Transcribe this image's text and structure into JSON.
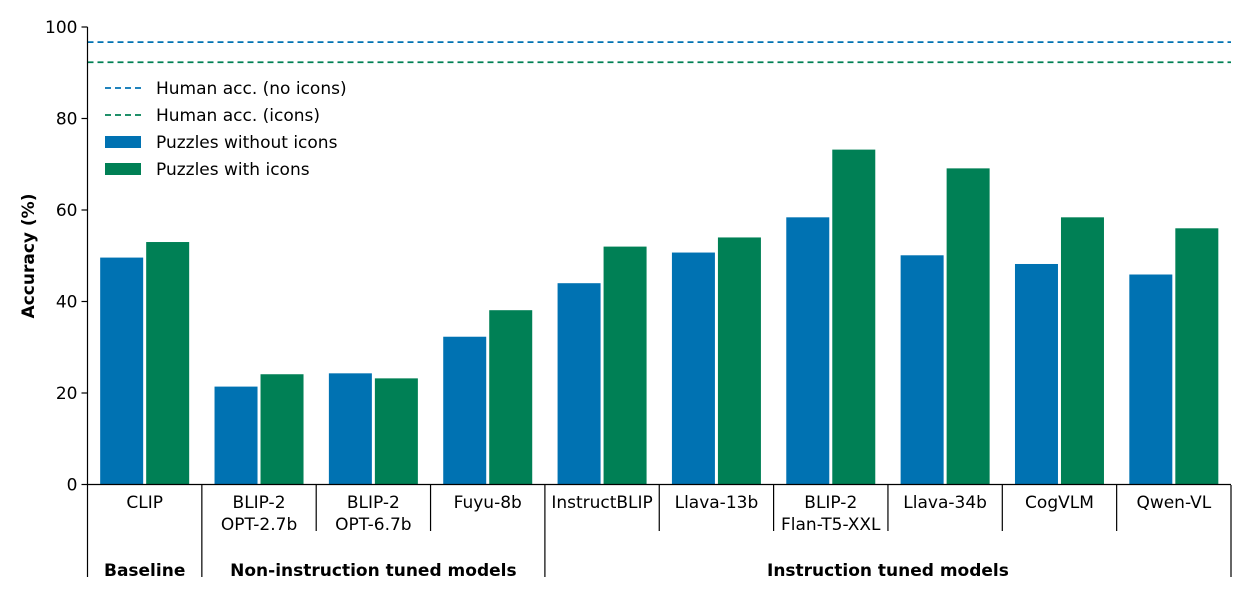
{
  "chart_data": {
    "type": "bar",
    "ylabel": "Accuracy (%)",
    "ylim": [
      0,
      100
    ],
    "yticks": [
      0,
      20,
      40,
      60,
      80,
      100
    ],
    "grid": false,
    "legend_position": "upper-left",
    "categories": [
      [
        "CLIP"
      ],
      [
        "BLIP-2",
        "OPT-2.7b"
      ],
      [
        "BLIP-2",
        "OPT-6.7b"
      ],
      [
        "Fuyu-8b"
      ],
      [
        "InstructBLIP"
      ],
      [
        "Llava-13b"
      ],
      [
        "BLIP-2",
        "Flan-T5-XXL"
      ],
      [
        "Llava-34b"
      ],
      [
        "CogVLM"
      ],
      [
        "Qwen-VL"
      ]
    ],
    "series": [
      {
        "name": "Puzzles without icons",
        "color": "#0072b2",
        "values": [
          49.6,
          21.4,
          24.3,
          32.3,
          44.0,
          50.7,
          58.4,
          50.1,
          48.2,
          45.9
        ]
      },
      {
        "name": "Puzzles with icons",
        "color": "#008055",
        "values": [
          53.0,
          24.1,
          23.2,
          38.1,
          52.0,
          54.0,
          73.2,
          69.1,
          58.4,
          56.0
        ]
      }
    ],
    "reference_lines": [
      {
        "name": "Human acc. (no icons)",
        "value": 96.7,
        "color": "#0072b2"
      },
      {
        "name": "Human acc. (icons)",
        "value": 92.3,
        "color": "#008055"
      }
    ],
    "groups": [
      {
        "label": "Baseline",
        "start": 0,
        "end": 0
      },
      {
        "label": "Non-instruction tuned models",
        "start": 1,
        "end": 3
      },
      {
        "label": "Instruction tuned models",
        "start": 4,
        "end": 9
      }
    ]
  }
}
